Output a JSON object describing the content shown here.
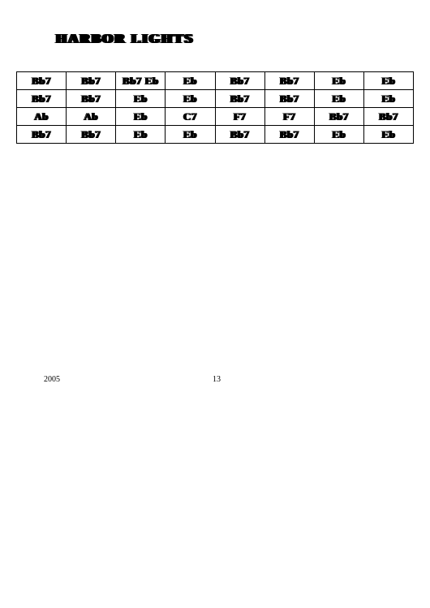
{
  "title": "HARBOR LIGHTS",
  "table": {
    "rows": [
      [
        "Bb7",
        "Bb7",
        "Bb7 Eb",
        "Eb",
        "Bb7",
        "Bb7",
        "Eb",
        "Eb"
      ],
      [
        "Bb7",
        "Bb7",
        "Eb",
        "Eb",
        "Bb7",
        "Bb7",
        "Eb",
        "Eb"
      ],
      [
        "Ab",
        "Ab",
        "Eb",
        "C7",
        "F7",
        "F7",
        "Bb7",
        "Bb7"
      ],
      [
        "Bb7",
        "Bb7",
        "Eb",
        "Eb",
        "Bb7",
        "Bb7",
        "Eb",
        "Eb"
      ]
    ],
    "columns": 8,
    "cell_fontsize": 13,
    "cell_fontweight": 900,
    "border_color": "#000000",
    "background_color": "#ffffff"
  },
  "footer": {
    "year": "2005",
    "page": "13"
  }
}
